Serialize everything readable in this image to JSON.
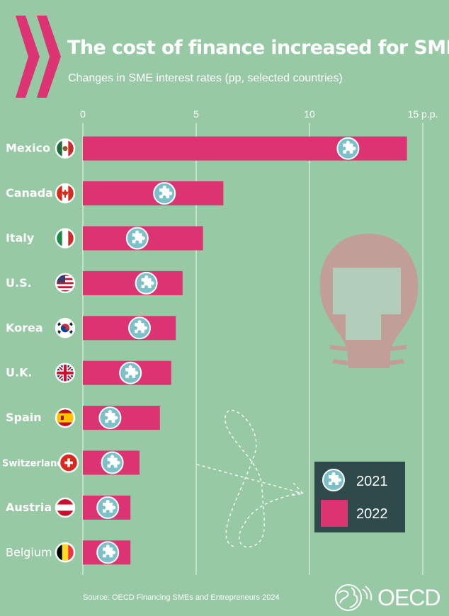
{
  "header": {
    "title": "The cost of finance increased for SMEs",
    "subtitle": "Changes in SME interest rates (pp, selected countries)"
  },
  "footer": {
    "source": "Source: OECD Financing SMEs and Entrepreneurs 2024",
    "logo_text": "OECD"
  },
  "colors": {
    "background": "#96c9a4",
    "bar_2022": "#dc3373",
    "marker_2021": "#7cc0c9",
    "gridline": "#ffffff",
    "legend_bg": "#2e4a4a"
  },
  "chart_data": {
    "type": "bar",
    "orientation": "horizontal",
    "title": "The cost of finance increased for SMEs",
    "subtitle": "Changes in SME interest rates (pp, selected countries)",
    "categories": [
      "Mexico",
      "Canada",
      "Italy",
      "U.S.",
      "Korea",
      "U.K.",
      "Spain",
      "Switzerland",
      "Austria",
      "Belgium"
    ],
    "flag_icons": [
      "mexico-flag-icon",
      "canada-flag-icon",
      "italy-flag-icon",
      "usa-flag-icon",
      "korea-flag-icon",
      "uk-flag-icon",
      "spain-flag-icon",
      "switzerland-flag-icon",
      "austria-flag-icon",
      "belgium-flag-icon"
    ],
    "series": [
      {
        "name": "2022",
        "style": "bar",
        "icon": "bar-swatch",
        "values": [
          14.3,
          6.2,
          5.3,
          4.4,
          4.1,
          3.9,
          3.4,
          2.5,
          2.1,
          2.1
        ]
      },
      {
        "name": "2021",
        "style": "marker",
        "icon": "puzzle-piece-icon",
        "values": [
          11.7,
          3.6,
          2.4,
          2.8,
          2.5,
          2.1,
          1.2,
          1.3,
          1.1,
          1.1
        ]
      }
    ],
    "xaxis": {
      "ticks": [
        0,
        5,
        10,
        15
      ],
      "tick_labels": [
        "0",
        "5",
        "10",
        "15 p.p."
      ],
      "range": [
        0,
        15
      ]
    },
    "grid": true,
    "legend": {
      "position": "bottom-right",
      "entries": [
        "2021",
        "2022"
      ]
    }
  }
}
